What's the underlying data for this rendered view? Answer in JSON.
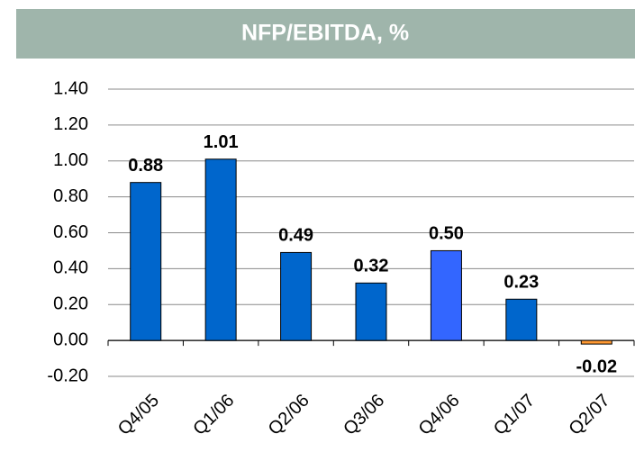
{
  "chart_data": {
    "type": "bar",
    "title": "NFP/EBITDA, %",
    "categories": [
      "Q4/05",
      "Q1/06",
      "Q2/06",
      "Q3/06",
      "Q4/06",
      "Q1/07",
      "Q2/07"
    ],
    "values": [
      0.88,
      1.01,
      0.49,
      0.32,
      0.5,
      0.23,
      -0.02
    ],
    "value_labels": [
      "0.88",
      "1.01",
      "0.49",
      "0.32",
      "0.50",
      "0.23",
      "-0.02"
    ],
    "colors": [
      "#0066cc",
      "#0066cc",
      "#0066cc",
      "#0066cc",
      "#3366ff",
      "#0066cc",
      "#ff9933"
    ],
    "ylim": [
      -0.2,
      1.4
    ],
    "yticks": [
      {
        "value": -0.2,
        "label": "-0.20"
      },
      {
        "value": 0,
        "label": "0.00"
      },
      {
        "value": 0.2,
        "label": "0.20"
      },
      {
        "value": 0.4,
        "label": "0.40"
      },
      {
        "value": 0.6,
        "label": "0.60"
      },
      {
        "value": 0.8,
        "label": "0.80"
      },
      {
        "value": 1.0,
        "label": "1.00"
      },
      {
        "value": 1.2,
        "label": "1.20"
      },
      {
        "value": 1.4,
        "label": "1.40"
      }
    ],
    "grid": true
  }
}
